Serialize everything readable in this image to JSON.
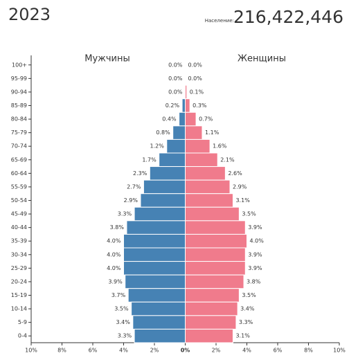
{
  "chart_data": {
    "type": "pyramid",
    "year": "2023",
    "population_label": "Население:",
    "population": "216,422,446",
    "categories": [
      "100+",
      "95-99",
      "90-94",
      "85-89",
      "80-84",
      "75-79",
      "70-74",
      "65-69",
      "60-64",
      "55-59",
      "50-54",
      "45-49",
      "40-44",
      "35-39",
      "30-34",
      "25-29",
      "20-24",
      "15-19",
      "10-14",
      "5-9",
      "0-4"
    ],
    "series": [
      {
        "name": "Мужчины",
        "color": "#4682b4",
        "values": [
          0.0,
          0.0,
          0.0,
          0.2,
          0.4,
          0.8,
          1.2,
          1.7,
          2.3,
          2.7,
          2.9,
          3.3,
          3.8,
          4.0,
          4.0,
          4.0,
          3.9,
          3.7,
          3.5,
          3.4,
          3.3
        ],
        "value_labels": [
          "0.0%",
          "0.0%",
          "0.0%",
          "0.2%",
          "0.4%",
          "0.8%",
          "1.2%",
          "1.7%",
          "2.3%",
          "2.7%",
          "2.9%",
          "3.3%",
          "3.8%",
          "4.0%",
          "4.0%",
          "4.0%",
          "3.9%",
          "3.7%",
          "3.5%",
          "3.4%",
          "3.3%"
        ]
      },
      {
        "name": "Женщины",
        "color": "#f07b8c",
        "values": [
          0.0,
          0.0,
          0.1,
          0.3,
          0.7,
          1.1,
          1.6,
          2.1,
          2.6,
          2.9,
          3.1,
          3.5,
          3.9,
          4.0,
          3.9,
          3.9,
          3.8,
          3.5,
          3.4,
          3.3,
          3.1
        ],
        "value_labels": [
          "0.0%",
          "0.0%",
          "0.1%",
          "0.3%",
          "0.7%",
          "1.1%",
          "1.6%",
          "2.1%",
          "2.6%",
          "2.9%",
          "3.1%",
          "3.5%",
          "3.9%",
          "4.0%",
          "3.9%",
          "3.9%",
          "3.8%",
          "3.5%",
          "3.4%",
          "3.3%",
          "3.1%"
        ]
      }
    ],
    "xlim": [
      -10,
      10
    ],
    "xticks": [
      {
        "value": -10,
        "label": "10%"
      },
      {
        "value": -8,
        "label": "8%"
      },
      {
        "value": -6,
        "label": "6%"
      },
      {
        "value": -4,
        "label": "4%"
      },
      {
        "value": -2,
        "label": "2%"
      },
      {
        "value": 0,
        "label": "0%"
      },
      {
        "value": 2,
        "label": "2%"
      },
      {
        "value": 4,
        "label": "4%"
      },
      {
        "value": 6,
        "label": "6%"
      },
      {
        "value": 8,
        "label": "8%"
      },
      {
        "value": 10,
        "label": "10%"
      }
    ]
  }
}
